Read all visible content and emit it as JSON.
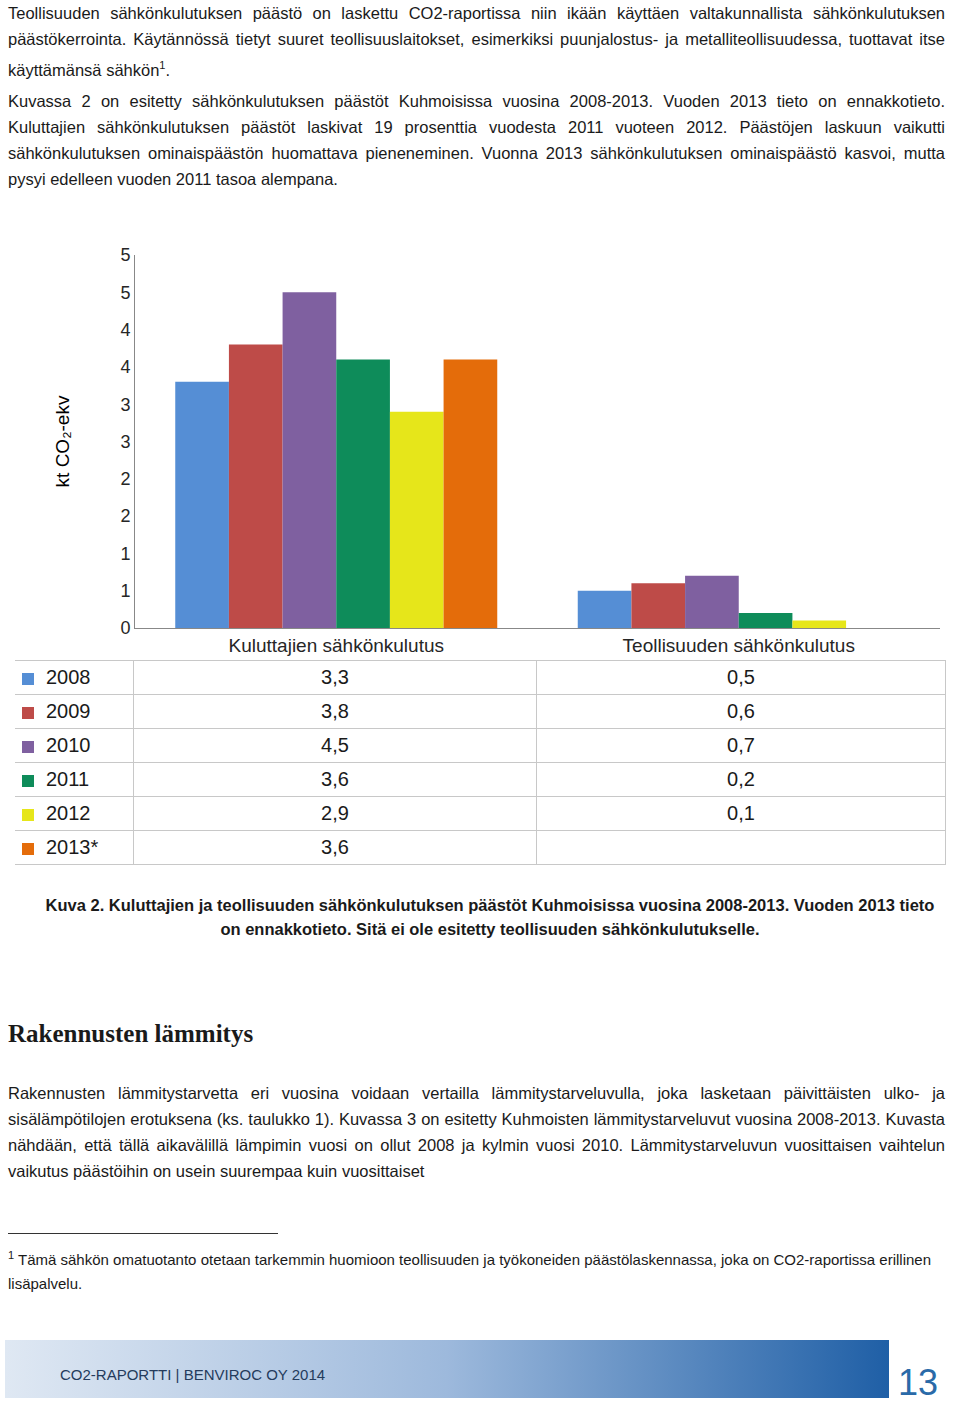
{
  "document": {
    "paragraph1": {
      "text": "Teollisuuden sähkönkulutuksen päästö on laskettu CO2-raportissa niin ikään käyttäen valtakunnallista sähkönkulutuksen päästökerrointa. Käytännössä tietyt suuret teollisuuslaitokset, esimerkiksi puunjalostus- ja metalliteollisuudessa, tuottavat itse käyttämänsä sähkön",
      "sup": "1",
      "after": "."
    },
    "paragraph2": "Kuvassa 2 on esitetty sähkönkulutuksen päästöt Kuhmoisissa vuosina 2008-2013. Vuoden 2013 tieto on ennakkotieto. Kuluttajien sähkönkulutuksen päästöt laskivat 19 prosenttia vuodesta 2011 vuoteen 2012. Päästöjen laskuun vaikutti sähkönkulutuksen ominaispäästön huomattava pieneneminen. Vuonna 2013 sähkönkulutuksen ominaispäästö kasvoi, mutta pysyi edelleen vuoden 2011 tasoa alempana.",
    "caption": "Kuva 2. Kuluttajien ja teollisuuden sähkönkulutuksen päästöt Kuhmoisissa vuosina 2008-2013. Vuoden 2013 tieto on ennakkotieto. Sitä ei ole esitetty teollisuuden sähkönkulutukselle.",
    "heading": "Rakennusten lämmitys",
    "paragraph3": "Rakennusten lämmitystarvetta eri vuosina voidaan vertailla lämmitystarveluvulla, joka lasketaan päivittäisten ulko- ja sisälämpötilojen erotuksena (ks. taulukko 1). Kuvassa 3 on esitetty Kuhmoisten lämmitystarveluvut vuosina 2008-2013. Kuvasta nähdään, että tällä aikavälillä lämpimin vuosi on ollut 2008 ja kylmin vuosi 2010. Lämmitystarveluvun vuosittaisen vaihtelun vaikutus päästöihin on usein suurempaa kuin vuosittaiset",
    "footnote": {
      "marker": "1",
      "text": "Tämä sähkön omatuotanto otetaan tarkemmin huomioon teollisuuden ja työkoneiden päästölaskennassa, joka on CO2-raportissa erillinen lisäpalvelu."
    },
    "footer": {
      "text": "CO2-RAPORTTI | BENVIROC OY 2014",
      "page": "13"
    }
  },
  "chart_data": {
    "type": "bar",
    "y_label": "kt CO₂-ekv",
    "categories": [
      "Kuluttajien sähkönkulutus",
      "Teollisuuden sähkönkulutus"
    ],
    "series": [
      {
        "name": "2008",
        "color": "#558ed5",
        "values": [
          3.3,
          0.5
        ],
        "value_labels": [
          "3,3",
          "0,5"
        ]
      },
      {
        "name": "2009",
        "color": "#be4b48",
        "values": [
          3.8,
          0.6
        ],
        "value_labels": [
          "3,8",
          "0,6"
        ]
      },
      {
        "name": "2010",
        "color": "#7f60a0",
        "values": [
          4.5,
          0.7
        ],
        "value_labels": [
          "4,5",
          "0,7"
        ]
      },
      {
        "name": "2011",
        "color": "#0e8c5a",
        "values": [
          3.6,
          0.2
        ],
        "value_labels": [
          "3,6",
          "0,2"
        ]
      },
      {
        "name": "2012",
        "color": "#e6e61a",
        "values": [
          2.9,
          0.1
        ],
        "value_labels": [
          "2,9",
          "0,1"
        ]
      },
      {
        "name": "2013*",
        "color": "#e46c0a",
        "values": [
          3.6,
          null
        ],
        "value_labels": [
          "3,6",
          null
        ]
      }
    ],
    "ylim": [
      0,
      5
    ],
    "yticks": [
      0,
      {
        "value": 0.5,
        "label": "1"
      },
      1,
      {
        "value": 1.5,
        "label": "2"
      },
      2,
      {
        "value": 2.5,
        "label": "3"
      },
      3,
      {
        "value": 3.5,
        "label": "4"
      },
      4,
      {
        "value": 4.5,
        "label": "5"
      },
      5
    ],
    "grid": false
  }
}
